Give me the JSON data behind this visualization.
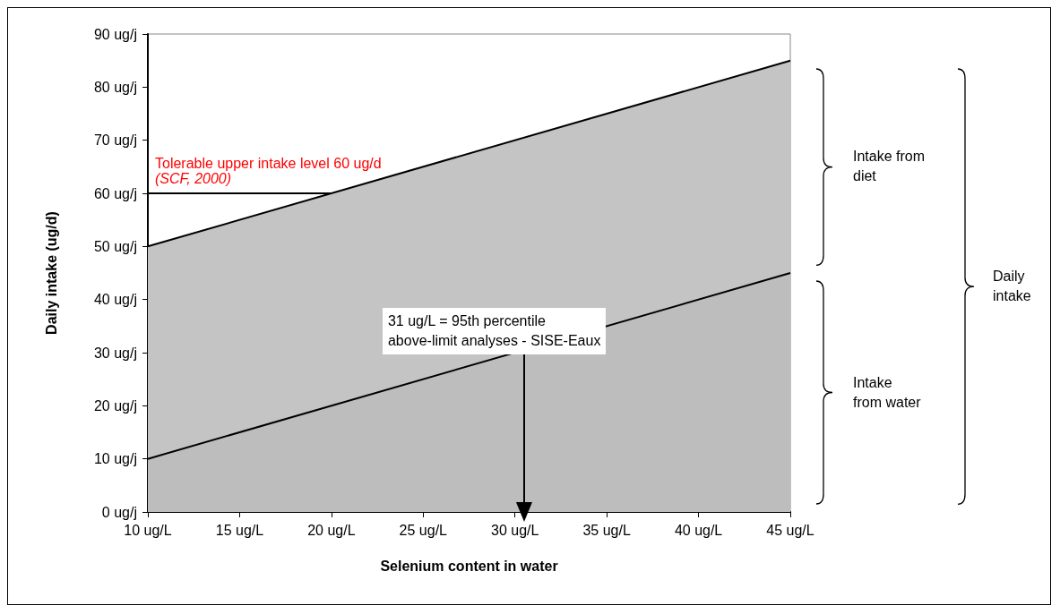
{
  "chart_data": {
    "type": "area",
    "stacked": true,
    "xlabel": "Selenium content in water",
    "ylabel": "Daily intake (ug/d)",
    "x": [
      10,
      45
    ],
    "series": [
      {
        "color": "#bdbdbd",
        "values": [
          10,
          45
        ]
      },
      {
        "color": "#c4c4c4",
        "values": [
          40,
          40
        ]
      }
    ],
    "xlim": [
      10,
      45
    ],
    "xticks": [
      {
        "value": 10,
        "label": "10 ug/L"
      },
      {
        "value": 15,
        "label": "15 ug/L"
      },
      {
        "value": 20,
        "label": "20 ug/L"
      },
      {
        "value": 25,
        "label": "25 ug/L"
      },
      {
        "value": 30,
        "label": "30 ug/L"
      },
      {
        "value": 35,
        "label": "35 ug/L"
      },
      {
        "value": 40,
        "label": "40 ug/L"
      },
      {
        "value": 45,
        "label": "45 ug/L"
      }
    ],
    "ylim": [
      0,
      90
    ],
    "yticks": [
      {
        "value": 0,
        "label": "0 ug/j"
      },
      {
        "value": 10,
        "label": "10 ug/j"
      },
      {
        "value": 20,
        "label": "20 ug/j"
      },
      {
        "value": 30,
        "label": "30 ug/j"
      },
      {
        "value": 40,
        "label": "40 ug/j"
      },
      {
        "value": 50,
        "label": "50 ug/j"
      },
      {
        "value": 60,
        "label": "60 ug/j"
      },
      {
        "value": 70,
        "label": "70 ug/j"
      },
      {
        "value": 80,
        "label": "80 ug/j"
      },
      {
        "value": 90,
        "label": "90 ug/j"
      }
    ],
    "grid": false,
    "ref_lines": [
      {
        "axis": "y",
        "value": 60,
        "label": "Tolerable upper intake level 60 ug/d"
      }
    ],
    "annotations": [
      "(SCF, 2000)",
      {
        "text": "31 ug/L = 95th percentile\nabove-limit analyses - SISE-Eaux",
        "x": 30.5,
        "y": 0
      },
      "Intake from\ndiet",
      "Intake\nfrom water",
      "Daily\nintake"
    ]
  }
}
